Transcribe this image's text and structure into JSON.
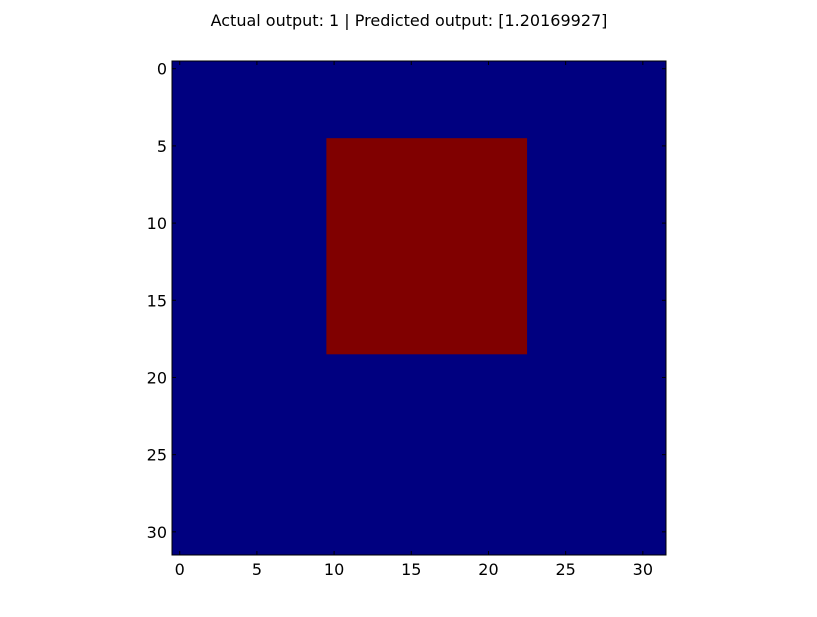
{
  "chart_data": {
    "type": "heatmap",
    "title": "Actual output: 1 | Predicted output: [1.20169927]",
    "xlabel": "",
    "ylabel": "",
    "xlim": [
      -0.5,
      31.5
    ],
    "ylim": [
      31.5,
      -0.5
    ],
    "grid": false,
    "x_ticks": [
      0,
      5,
      10,
      15,
      20,
      25,
      30
    ],
    "y_ticks": [
      0,
      5,
      10,
      15,
      20,
      25,
      30
    ],
    "background_value": 0,
    "background_color": "#000080",
    "regions": [
      {
        "value": 1,
        "color": "#800000",
        "x_range": [
          10,
          22
        ],
        "y_range": [
          5,
          18
        ]
      }
    ]
  }
}
